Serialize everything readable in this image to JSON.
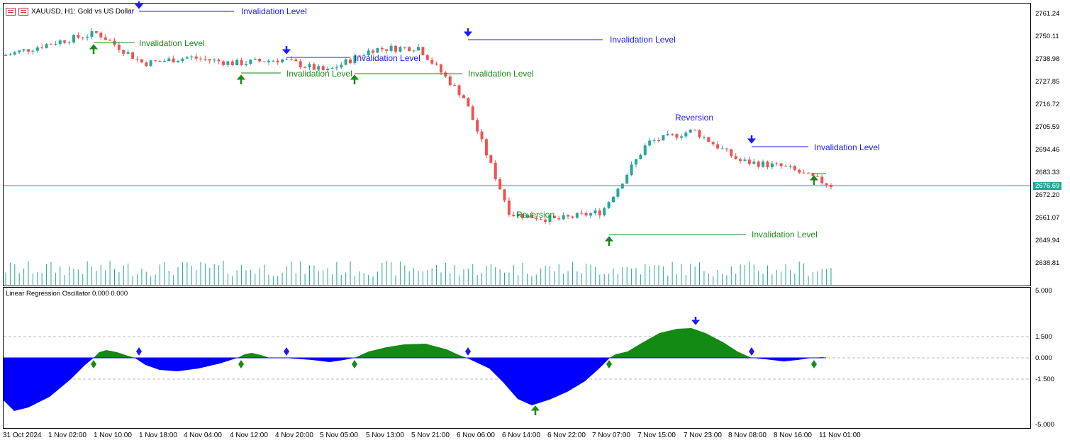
{
  "header": {
    "symbol_label": "XAUUSD, H1:  Gold vs US Dollar"
  },
  "price_axis": {
    "ticks": [
      "2761.24",
      "2750.11",
      "2738.98",
      "2727.85",
      "2716.72",
      "2705.59",
      "2694.46",
      "2683.33",
      "2672.20",
      "2661.07",
      "2649.94",
      "2638.81"
    ],
    "current_price": "2676.69"
  },
  "oscillator": {
    "title": "Linear Regression Oscillator 0.000 0.000",
    "ticks": [
      "5.000",
      "1.500",
      "0.000",
      "-1.500",
      "-5.000"
    ]
  },
  "time_axis": {
    "labels": [
      "31 Oct 2024",
      "1 Nov 02:00",
      "1 Nov 10:00",
      "1 Nov 18:00",
      "4 Nov 04:00",
      "4 Nov 12:00",
      "4 Nov 20:00",
      "5 Nov 05:00",
      "5 Nov 13:00",
      "5 Nov 21:00",
      "6 Nov 06:00",
      "6 Nov 14:00",
      "6 Nov 22:00",
      "7 Nov 07:00",
      "7 Nov 15:00",
      "7 Nov 23:00",
      "8 Nov 08:00",
      "8 Nov 16:00",
      "11 Nov 01:00"
    ]
  },
  "annotations": {
    "invalidation": "Invalidation Level",
    "reversion": "Reversion"
  },
  "colors": {
    "bull": "#26a69a",
    "bear": "#ef5350",
    "blue_level": "#1a1aff",
    "green_level": "#1a8a1a",
    "osc_positive": "#138a13",
    "osc_negative": "#0000ff"
  },
  "chart_data": {
    "type": "line",
    "title": "XAUUSD, H1:  Gold vs US Dollar",
    "ylim": [
      2638.81,
      2761.24
    ],
    "approx_close_path": [
      {
        "x": "31 Oct 2024",
        "y": 2741
      },
      {
        "x": "1 Nov 02:00",
        "y": 2747
      },
      {
        "x": "1 Nov 10:00",
        "y": 2752
      },
      {
        "x": "1 Nov 18:00",
        "y": 2737
      },
      {
        "x": "4 Nov 04:00",
        "y": 2740
      },
      {
        "x": "4 Nov 12:00",
        "y": 2737
      },
      {
        "x": "4 Nov 20:00",
        "y": 2739
      },
      {
        "x": "5 Nov 05:00",
        "y": 2733
      },
      {
        "x": "5 Nov 13:00",
        "y": 2744
      },
      {
        "x": "5 Nov 21:00",
        "y": 2745
      },
      {
        "x": "6 Nov 06:00",
        "y": 2720
      },
      {
        "x": "6 Nov 14:00",
        "y": 2663
      },
      {
        "x": "6 Nov 22:00",
        "y": 2660
      },
      {
        "x": "7 Nov 07:00",
        "y": 2664
      },
      {
        "x": "7 Nov 15:00",
        "y": 2698
      },
      {
        "x": "7 Nov 23:00",
        "y": 2704
      },
      {
        "x": "8 Nov 08:00",
        "y": 2689
      },
      {
        "x": "8 Nov 16:00",
        "y": 2686
      },
      {
        "x": "11 Nov 01:00",
        "y": 2677
      }
    ]
  }
}
